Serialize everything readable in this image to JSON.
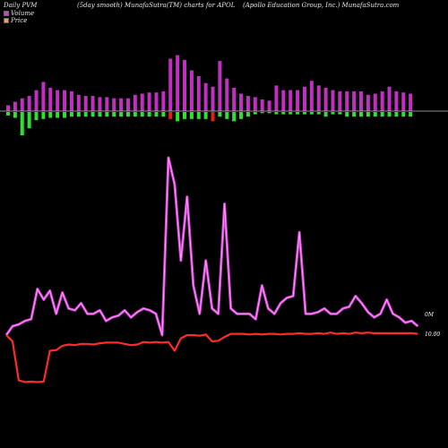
{
  "header": {
    "left": "Daily PVM",
    "middle": "(5day smooth) MunafaSutra(TM) charts for APOL",
    "right": "(Apollo  Education  Group,  Inc.) MunafaSutra.com"
  },
  "legend": [
    {
      "label": "Volume",
      "color": "#d040d0"
    },
    {
      "label": "Price",
      "color": "#e8a060"
    }
  ],
  "colors": {
    "background": "#000000",
    "volume_line": "#d040d0",
    "volume_line_inner": "#ff99ff",
    "price_line": "#ff2a2a",
    "bar_up": "#c030c0",
    "bar_down_green": "#30e030",
    "bar_down_red": "#e02020",
    "baseline": "#bbbbbb"
  },
  "chart_data": {
    "type": "line",
    "bars": {
      "name": "Volume",
      "up": [
        5,
        8,
        11,
        13,
        18,
        25,
        20,
        18,
        18,
        17,
        14,
        13,
        13,
        12,
        12,
        11,
        11,
        11,
        14,
        15,
        16,
        16,
        17,
        45,
        48,
        44,
        35,
        30,
        24,
        21,
        43,
        28,
        20,
        15,
        13,
        12,
        10,
        9,
        22,
        18,
        18,
        18,
        21,
        26,
        22,
        20,
        18,
        17,
        17,
        17,
        17,
        14,
        15,
        17,
        21,
        17,
        16,
        15
      ],
      "down": [
        3,
        5,
        20,
        14,
        7,
        6,
        5,
        5,
        5,
        4,
        4,
        4,
        4,
        4,
        4,
        4,
        4,
        4,
        4,
        4,
        4,
        4,
        4,
        6,
        8,
        6,
        6,
        6,
        6,
        8,
        4,
        6,
        8,
        6,
        4,
        2,
        1,
        1,
        2,
        2,
        2,
        2,
        2,
        2,
        2,
        4,
        2,
        2,
        4,
        4,
        4,
        4,
        4,
        4,
        4,
        4,
        4,
        4
      ],
      "down_red_index": [
        23,
        29
      ]
    },
    "volume_line": {
      "name": "Volume",
      "values": [
        0,
        5,
        6,
        8,
        9,
        26,
        20,
        25,
        12,
        24,
        15,
        14,
        18,
        12,
        12,
        14,
        8,
        10,
        11,
        14,
        10,
        13,
        15,
        14,
        12,
        0,
        100,
        85,
        42,
        78,
        28,
        12,
        42,
        15,
        12,
        74,
        15,
        12,
        12,
        12,
        9,
        28,
        15,
        12,
        18,
        21,
        22,
        58,
        12,
        12,
        13,
        15,
        12,
        12,
        15,
        16,
        22,
        18,
        13,
        10,
        12,
        20,
        12,
        10,
        7,
        8,
        5
      ],
      "annotation": "0M"
    },
    "price_line": {
      "name": "Price",
      "values": [
        10.0,
        9.0,
        2.8,
        2.5,
        2.6,
        2.5,
        2.6,
        7.5,
        7.6,
        8.3,
        8.5,
        8.4,
        8.6,
        8.6,
        8.5,
        8.7,
        8.8,
        8.8,
        8.8,
        8.6,
        8.4,
        8.5,
        8.9,
        8.8,
        8.9,
        8.8,
        8.9,
        7.5,
        9.5,
        10.0,
        10.0,
        9.9,
        10.1,
        9.0,
        9.1,
        9.7,
        10.2,
        10.2,
        10.2,
        10.1,
        10.2,
        10.1,
        10.2,
        10.2,
        10.1,
        10.2,
        10.2,
        10.3,
        10.2,
        10.2,
        10.3,
        10.2,
        10.4,
        10.2,
        10.3,
        10.2,
        10.4,
        10.3,
        10.4,
        10.3,
        10.3,
        10.3,
        10.3,
        10.3,
        10.3,
        10.3,
        10.2
      ],
      "annotation": "10.00"
    }
  }
}
